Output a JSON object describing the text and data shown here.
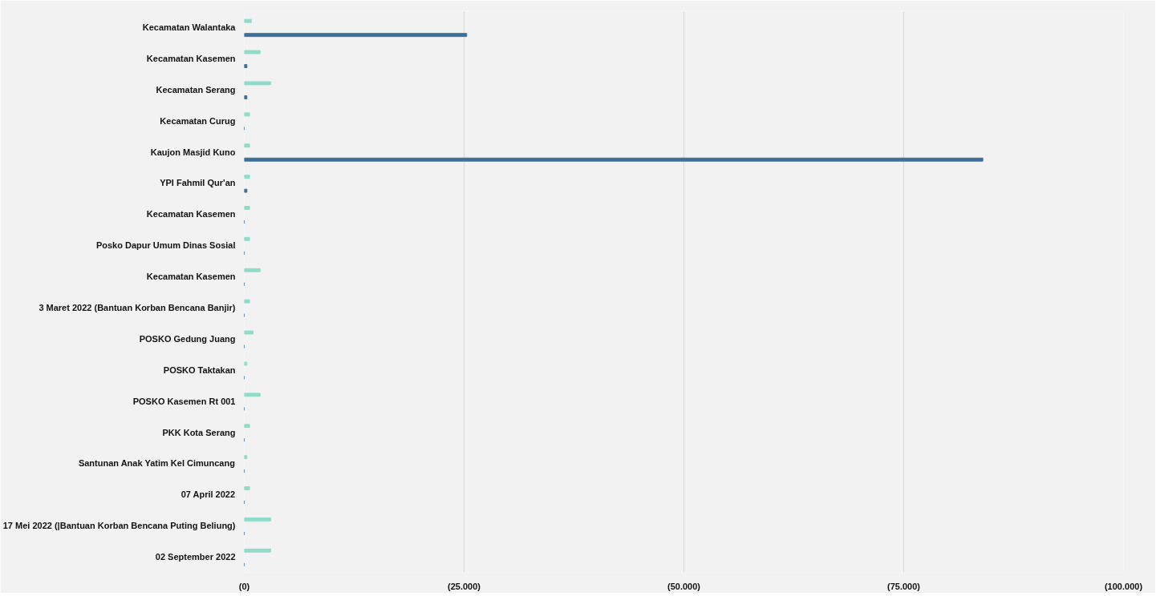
{
  "chart_data": {
    "type": "bar",
    "orientation": "horizontal",
    "categories": [
      "Kecamatan Walantaka",
      "Kecamatan Kasemen",
      "Kecamatan Serang",
      "Kecamatan Curug",
      "Kaujon Masjid Kuno",
      "YPI Fahmil Qur'an",
      "Kecamatan Kasemen",
      "Posko Dapur Umum Dinas Sosial",
      "Kecamatan Kasemen",
      "3 Maret 2022 (Bantuan Korban Bencana Banjir)",
      "POSKO Gedung Juang",
      "POSKO Taktakan",
      "POSKO Kasemen Rt 001",
      "PKK Kota Serang",
      "Santunan Anak Yatim Kel Cimuncang",
      "07 April 2022",
      "17 Mei 2022 (|Bantuan Korban Bencana Puting Beliung)",
      "02 September 2022"
    ],
    "series": [
      {
        "color": "#3d6f9a",
        "values": [
          25300,
          300,
          300,
          0,
          84000,
          300,
          0,
          0,
          0,
          0,
          0,
          0,
          0,
          0,
          0,
          0,
          0,
          0
        ]
      },
      {
        "color": "#8fdcc8",
        "values": [
          800,
          1800,
          3000,
          600,
          600,
          600,
          600,
          600,
          1800,
          600,
          1000,
          300,
          1800,
          600,
          300,
          600,
          3000,
          3000
        ]
      }
    ],
    "xlim": [
      0,
      100000
    ],
    "xticks": [
      {
        "value": 0,
        "label": "(0)"
      },
      {
        "value": 25000,
        "label": "(25.000)"
      },
      {
        "value": 50000,
        "label": "(50.000)"
      },
      {
        "value": 75000,
        "label": "(75.000)"
      },
      {
        "value": 100000,
        "label": "(100.000)"
      }
    ],
    "grid": "x"
  }
}
